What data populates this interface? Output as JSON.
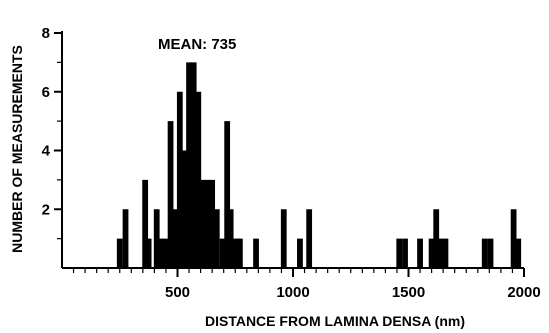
{
  "chart_data": {
    "type": "bar",
    "annotation": "MEAN:  735",
    "xlabel": "DISTANCE FROM LAMINA DENSA  (nm)",
    "ylabel": "NUMBER OF MEASUREMENTS",
    "xlim": [
      0,
      2000
    ],
    "ylim": [
      0,
      8
    ],
    "x_ticks": [
      500,
      1000,
      1500,
      2000
    ],
    "y_ticks": [
      2,
      4,
      6,
      8
    ],
    "bin_width": 25,
    "bar_color": "#000000",
    "grid": false,
    "legend": "none",
    "bars": [
      {
        "x": 250,
        "y": 1
      },
      {
        "x": 275,
        "y": 2
      },
      {
        "x": 360,
        "y": 3
      },
      {
        "x": 375,
        "y": 1
      },
      {
        "x": 410,
        "y": 2
      },
      {
        "x": 430,
        "y": 1
      },
      {
        "x": 450,
        "y": 1
      },
      {
        "x": 470,
        "y": 5
      },
      {
        "x": 490,
        "y": 2
      },
      {
        "x": 510,
        "y": 6
      },
      {
        "x": 530,
        "y": 4
      },
      {
        "x": 550,
        "y": 7
      },
      {
        "x": 570,
        "y": 7
      },
      {
        "x": 590,
        "y": 6
      },
      {
        "x": 610,
        "y": 3
      },
      {
        "x": 630,
        "y": 3
      },
      {
        "x": 650,
        "y": 3
      },
      {
        "x": 670,
        "y": 2
      },
      {
        "x": 695,
        "y": 1
      },
      {
        "x": 715,
        "y": 5
      },
      {
        "x": 730,
        "y": 2
      },
      {
        "x": 745,
        "y": 1
      },
      {
        "x": 760,
        "y": 1
      },
      {
        "x": 770,
        "y": 1
      },
      {
        "x": 840,
        "y": 1
      },
      {
        "x": 960,
        "y": 2
      },
      {
        "x": 1030,
        "y": 1
      },
      {
        "x": 1070,
        "y": 2
      },
      {
        "x": 1460,
        "y": 1
      },
      {
        "x": 1485,
        "y": 1
      },
      {
        "x": 1550,
        "y": 1
      },
      {
        "x": 1600,
        "y": 1
      },
      {
        "x": 1620,
        "y": 2
      },
      {
        "x": 1640,
        "y": 1
      },
      {
        "x": 1660,
        "y": 1
      },
      {
        "x": 1830,
        "y": 1
      },
      {
        "x": 1855,
        "y": 1
      },
      {
        "x": 1955,
        "y": 2
      },
      {
        "x": 1975,
        "y": 1
      }
    ]
  }
}
